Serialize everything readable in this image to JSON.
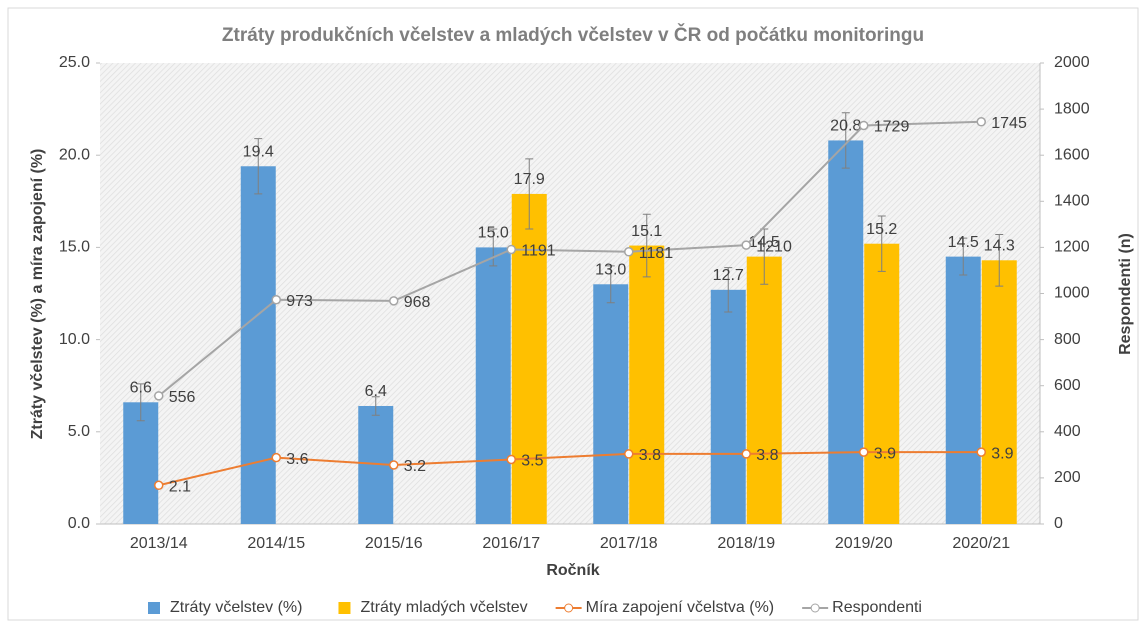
{
  "chart_data": {
    "type": "bar",
    "title": "Ztráty produkčních včelstev a mladých včelstev v ČR od počátku monitoringu",
    "x_label": "Ročník",
    "y_label": "Ztráty včelstev (%) a míra zapojení (%)",
    "y2_label": "Respondenti (n)",
    "categories": [
      "2013/14",
      "2014/15",
      "2015/16",
      "2016/17",
      "2017/18",
      "2018/19",
      "2019/20",
      "2020/21"
    ],
    "series": [
      {
        "name": "Ztráty včelstev (%)",
        "type": "bar",
        "color": "#5b9bd5",
        "values": [
          6.6,
          19.4,
          6.4,
          15.0,
          13.0,
          12.7,
          20.8,
          14.5
        ],
        "value_labels": [
          "6.6",
          "19.4",
          "6.4",
          "15.0",
          "13.0",
          "12.7",
          "20.8",
          "14.5"
        ],
        "errors": [
          1.0,
          1.5,
          0.5,
          1.0,
          1.0,
          1.2,
          1.5,
          1.0
        ]
      },
      {
        "name": "Ztráty mladých včelstev",
        "type": "bar",
        "color": "#ffc000",
        "values": [
          null,
          null,
          null,
          17.9,
          15.1,
          14.5,
          15.2,
          14.3
        ],
        "errors": [
          null,
          null,
          null,
          1.9,
          1.7,
          1.5,
          1.5,
          1.4
        ]
      },
      {
        "name": "Míra zapojení včelstva (%)",
        "type": "line",
        "color": "#ed7d31",
        "values": [
          2.1,
          3.6,
          3.2,
          3.5,
          3.8,
          3.8,
          3.9,
          3.9
        ]
      },
      {
        "name": "Respondenti",
        "type": "line",
        "color": "#a5a5a5",
        "axis": "y2",
        "values": [
          556,
          973,
          968,
          1191,
          1181,
          1210,
          1729,
          1745
        ]
      }
    ],
    "ylim": [
      0,
      25
    ],
    "yticks": [
      {
        "value": 0,
        "label": "0.0"
      },
      {
        "value": 5,
        "label": "5.0"
      },
      {
        "value": 10,
        "label": "10.0"
      },
      {
        "value": 15,
        "label": "15.0"
      },
      {
        "value": 20,
        "label": "20.0"
      },
      {
        "value": 25,
        "label": "25.0"
      }
    ],
    "y2lim": [
      0,
      2000
    ],
    "y2ticks": [
      0,
      200,
      400,
      600,
      800,
      1000,
      1200,
      1400,
      1600,
      1800,
      2000
    ],
    "legend": "bottom"
  }
}
